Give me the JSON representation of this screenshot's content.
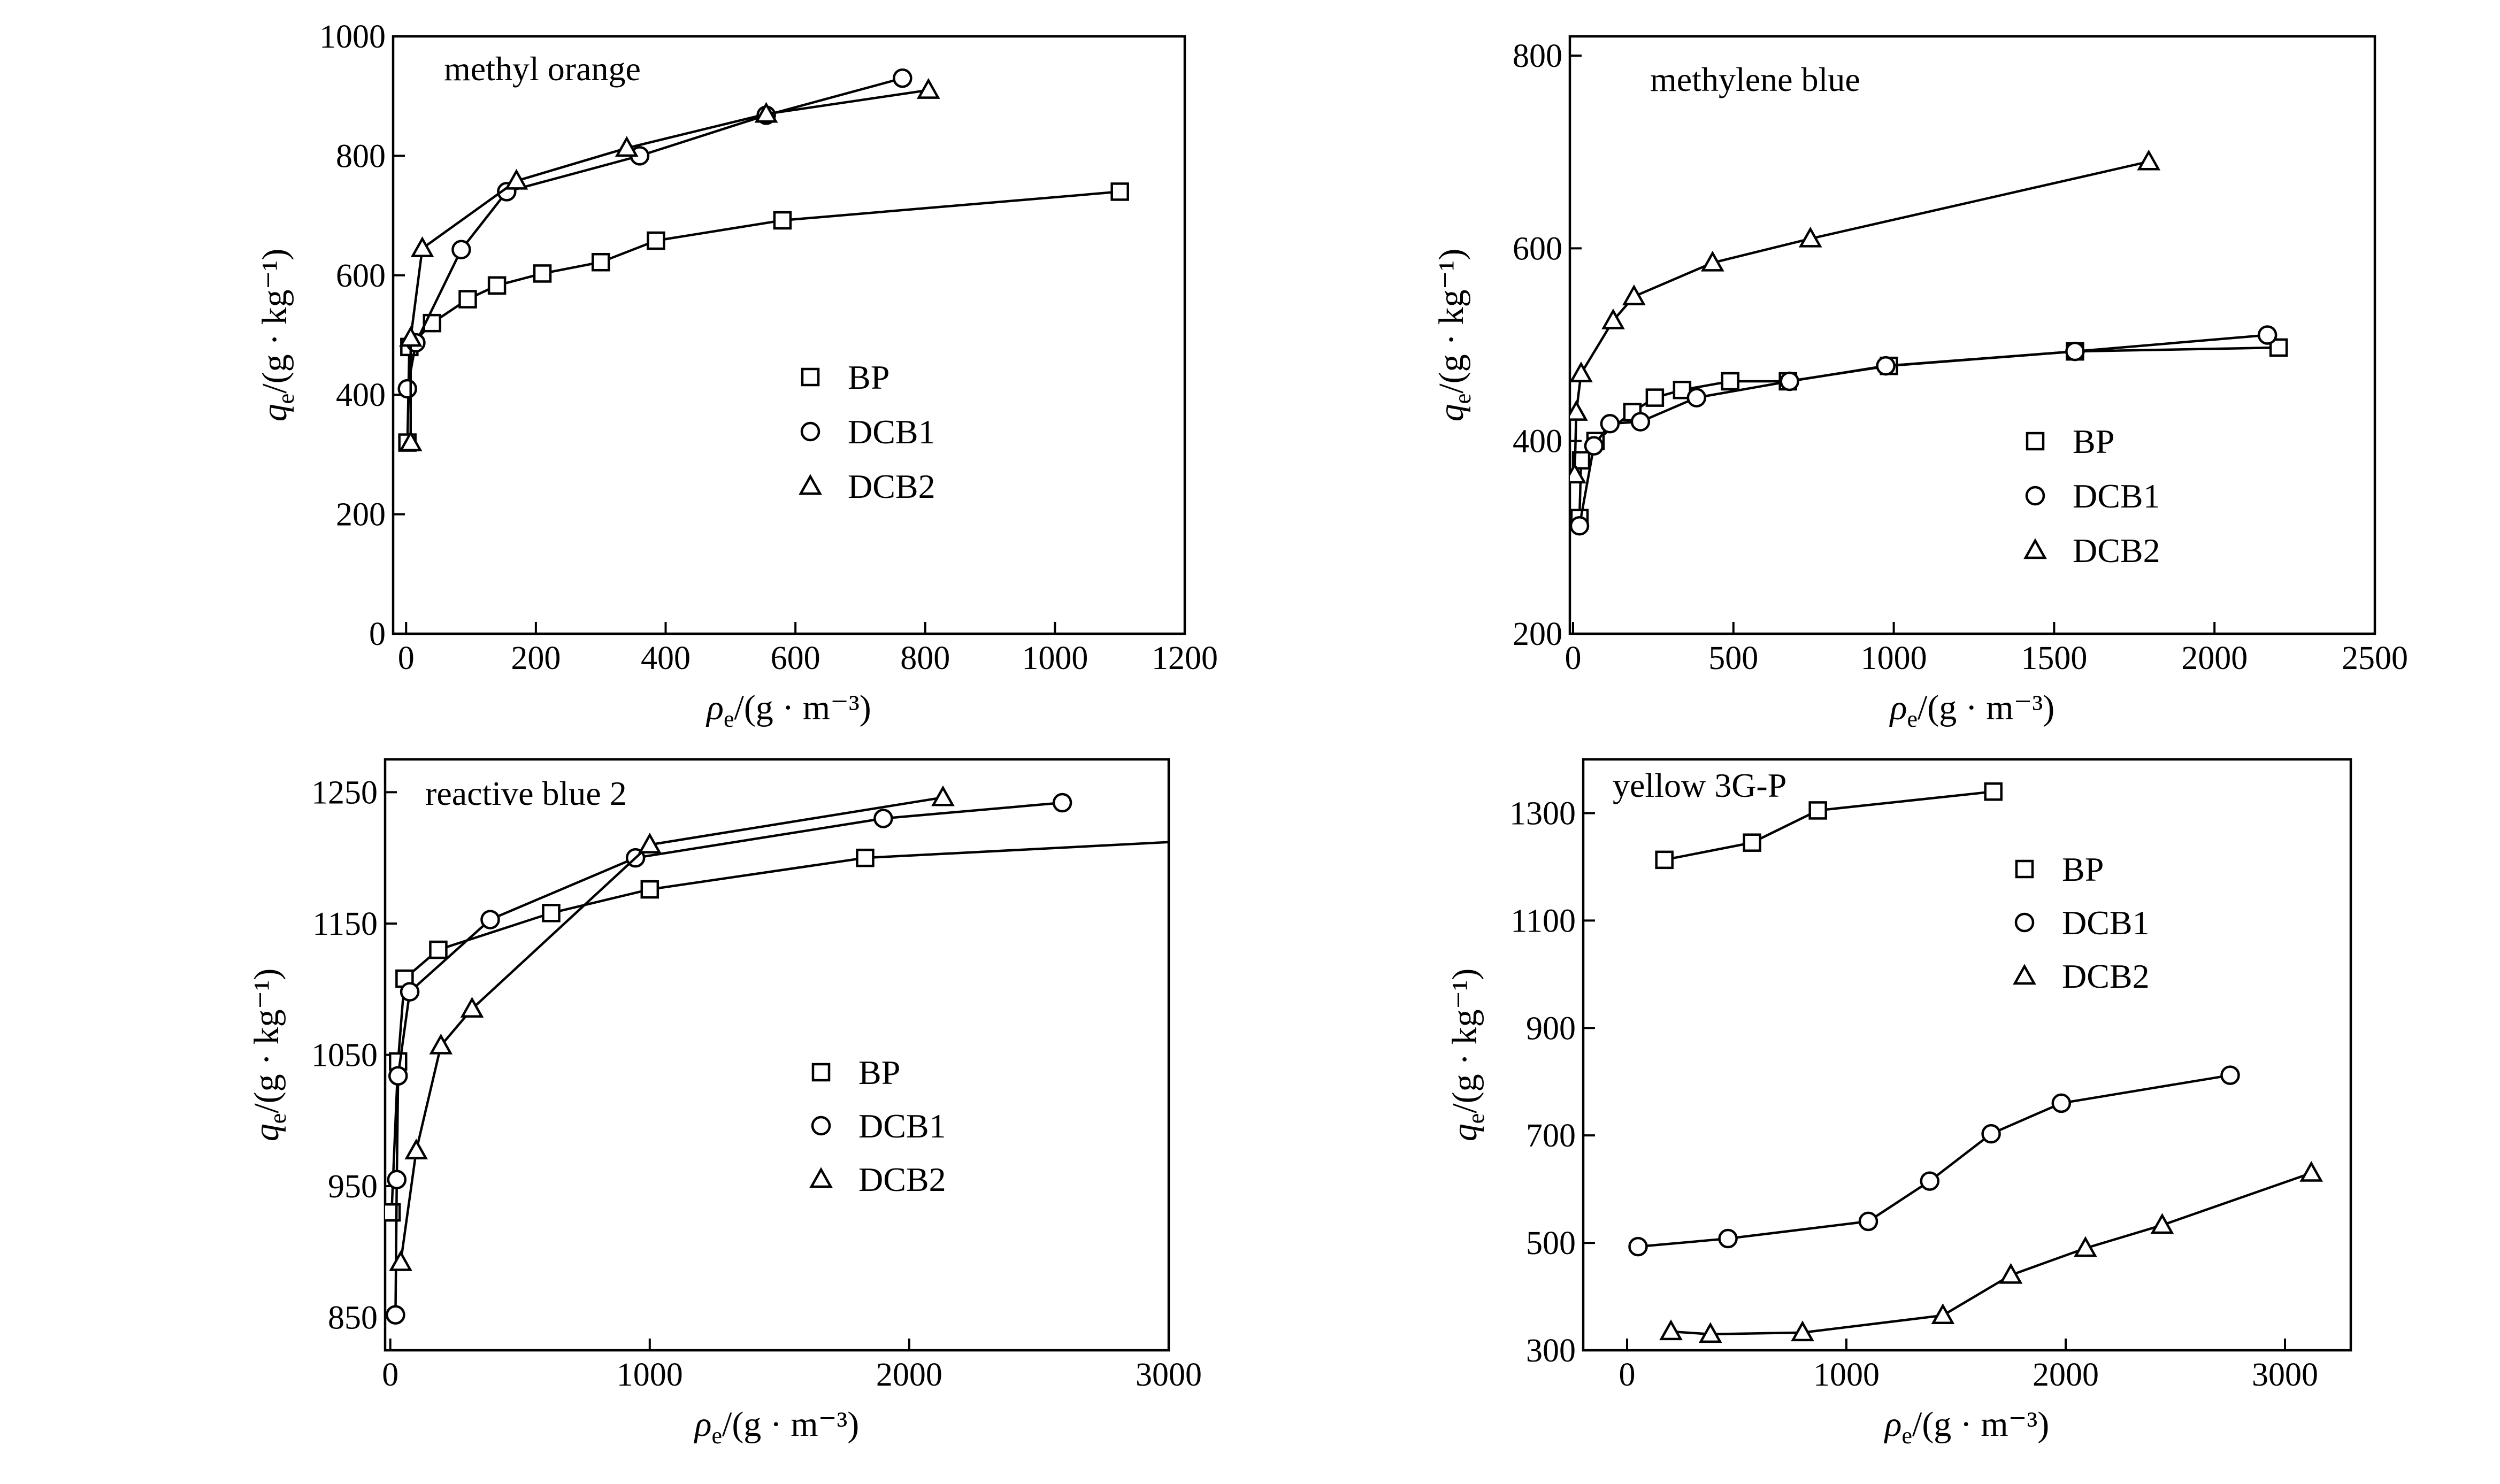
{
  "charts": [
    {
      "type": "line",
      "title": "methyl orange",
      "xlabel": "ρ",
      "xlabel_sub": "e",
      "xlabel_unit": "/(g · m⁻³)",
      "ylabel": "q",
      "ylabel_sub": "e",
      "ylabel_unit": "/(g · kg⁻¹)",
      "xlim": [
        -20,
        1200
      ],
      "ylim": [
        0,
        1000
      ],
      "xticks": [
        0,
        200,
        400,
        600,
        800,
        1000,
        1200
      ],
      "yticks": [
        0,
        200,
        400,
        600,
        800,
        1000
      ],
      "legend_position": "center-right",
      "series": [
        {
          "name": "BP",
          "marker": "square",
          "points": [
            [
              2,
              320
            ],
            [
              5,
              480
            ],
            [
              40,
              520
            ],
            [
              95,
              560
            ],
            [
              140,
              583
            ],
            [
              210,
              603
            ],
            [
              300,
              622
            ],
            [
              385,
              658
            ],
            [
              580,
              692
            ],
            [
              1100,
              740
            ]
          ]
        },
        {
          "name": "DCB1",
          "marker": "circle",
          "points": [
            [
              2,
              410
            ],
            [
              15,
              487
            ],
            [
              85,
              643
            ],
            [
              155,
              740
            ],
            [
              360,
              800
            ],
            [
              555,
              868
            ],
            [
              765,
              930
            ]
          ]
        },
        {
          "name": "DCB2",
          "marker": "triangle",
          "points": [
            [
              7,
              320
            ],
            [
              7,
              495
            ],
            [
              25,
              645
            ],
            [
              170,
              758
            ],
            [
              340,
              813
            ],
            [
              555,
              870
            ],
            [
              805,
              910
            ]
          ]
        }
      ]
    },
    {
      "type": "line",
      "title": "methylene blue",
      "xlabel": "ρ",
      "xlabel_sub": "e",
      "xlabel_unit": "/(g · m⁻³)",
      "ylabel": "q",
      "ylabel_sub": "e",
      "ylabel_unit": "/(g · kg⁻¹)",
      "xlim": [
        -10,
        2500
      ],
      "ylim": [
        200,
        820
      ],
      "xticks": [
        0,
        500,
        1000,
        1500,
        2000,
        2500
      ],
      "yticks": [
        200,
        400,
        600,
        800
      ],
      "legend_position": "center-right",
      "series": [
        {
          "name": "BP",
          "marker": "square",
          "points": [
            [
              20,
              320
            ],
            [
              25,
              380
            ],
            [
              70,
              400
            ],
            [
              185,
              430
            ],
            [
              255,
              445
            ],
            [
              340,
              453
            ],
            [
              490,
              462
            ],
            [
              670,
              462
            ],
            [
              985,
              478
            ],
            [
              1565,
              493
            ],
            [
              2200,
              497
            ]
          ]
        },
        {
          "name": "DCB1",
          "marker": "circle",
          "points": [
            [
              20,
              312
            ],
            [
              65,
              395
            ],
            [
              115,
              418
            ],
            [
              210,
              420
            ],
            [
              385,
              445
            ],
            [
              675,
              462
            ],
            [
              975,
              478
            ],
            [
              1565,
              493
            ],
            [
              2165,
              510
            ]
          ]
        },
        {
          "name": "DCB2",
          "marker": "triangle",
          "points": [
            [
              5,
              365
            ],
            [
              10,
              430
            ],
            [
              25,
              470
            ],
            [
              125,
              525
            ],
            [
              190,
              550
            ],
            [
              435,
              585
            ],
            [
              740,
              610
            ],
            [
              1795,
              690
            ]
          ]
        }
      ]
    },
    {
      "type": "line",
      "title": "reactive blue 2",
      "xlabel": "ρ",
      "xlabel_sub": "e",
      "xlabel_unit": "/(g · m⁻³)",
      "ylabel": "q",
      "ylabel_sub": "e",
      "ylabel_unit": "/(g · kg⁻¹)",
      "xlim": [
        -20,
        3000
      ],
      "ylim": [
        825,
        1275
      ],
      "xticks": [
        0,
        1000,
        2000,
        3000
      ],
      "yticks": [
        850,
        950,
        1050,
        1150,
        1250
      ],
      "legend_position": "center-right",
      "series": [
        {
          "name": "BP",
          "marker": "square",
          "points": [
            [
              5,
              930
            ],
            [
              30,
              1045
            ],
            [
              55,
              1108
            ],
            [
              185,
              1130
            ],
            [
              620,
              1158
            ],
            [
              1000,
              1176
            ],
            [
              1830,
              1200
            ],
            [
              3000,
              1212
            ]
          ]
        },
        {
          "name": "DCB1",
          "marker": "circle",
          "points": [
            [
              20,
              852
            ],
            [
              25,
              955
            ],
            [
              30,
              1034
            ],
            [
              75,
              1098
            ],
            [
              385,
              1153
            ],
            [
              945,
              1200
            ],
            [
              1900,
              1230
            ],
            [
              2590,
              1242
            ]
          ]
        },
        {
          "name": "DCB2",
          "marker": "triangle",
          "points": [
            [
              40,
              892
            ],
            [
              100,
              977
            ],
            [
              195,
              1057
            ],
            [
              315,
              1085
            ],
            [
              1000,
              1210
            ],
            [
              2130,
              1246
            ]
          ]
        }
      ]
    },
    {
      "type": "line",
      "title": "yellow 3G-P",
      "xlabel": "ρ",
      "xlabel_sub": "e",
      "xlabel_unit": "/(g · m⁻³)",
      "ylabel": "q",
      "ylabel_sub": "e",
      "ylabel_unit": "/(g · kg⁻¹)",
      "xlim": [
        -200,
        3300
      ],
      "ylim": [
        300,
        1400
      ],
      "xticks": [
        0,
        1000,
        2000,
        3000
      ],
      "yticks": [
        300,
        500,
        700,
        900,
        1100,
        1300
      ],
      "legend_position": "top-right",
      "series": [
        {
          "name": "BP",
          "marker": "square",
          "points": [
            [
              170,
              1213
            ],
            [
              570,
              1245
            ],
            [
              870,
              1305
            ],
            [
              1670,
              1340
            ]
          ]
        },
        {
          "name": "DCB1",
          "marker": "circle",
          "points": [
            [
              50,
              493
            ],
            [
              460,
              508
            ],
            [
              1100,
              540
            ],
            [
              1380,
              615
            ],
            [
              1660,
              703
            ],
            [
              1980,
              760
            ],
            [
              2750,
              812
            ]
          ]
        },
        {
          "name": "DCB2",
          "marker": "triangle",
          "points": [
            [
              200,
              335
            ],
            [
              380,
              330
            ],
            [
              800,
              333
            ],
            [
              1440,
              365
            ],
            [
              1750,
              440
            ],
            [
              2090,
              490
            ],
            [
              2440,
              533
            ],
            [
              3120,
              630
            ]
          ]
        }
      ]
    }
  ]
}
